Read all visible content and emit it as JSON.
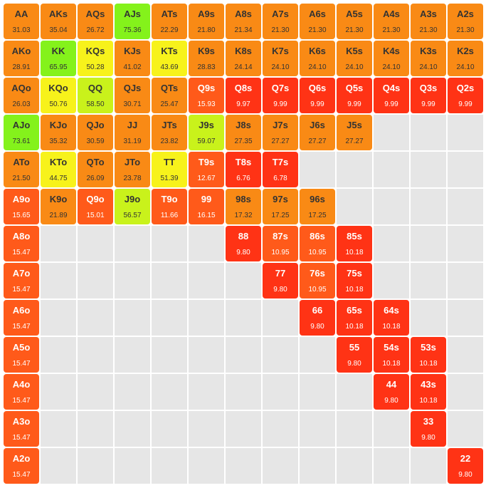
{
  "colors": {
    "empty": "#e6e6e6",
    "orange": "#f98a15",
    "orange_red": "#ff5a1a",
    "red": "#ff3315",
    "yellow": "#f7f21b",
    "lime": "#c9f21b",
    "green": "#84f21b"
  },
  "rows": [
    [
      {
        "hand": "AA",
        "value": "31.03",
        "color": "orange"
      },
      {
        "hand": "AKs",
        "value": "35.04",
        "color": "orange"
      },
      {
        "hand": "AQs",
        "value": "26.72",
        "color": "orange"
      },
      {
        "hand": "AJs",
        "value": "75.36",
        "color": "green"
      },
      {
        "hand": "ATs",
        "value": "22.29",
        "color": "orange"
      },
      {
        "hand": "A9s",
        "value": "21.80",
        "color": "orange"
      },
      {
        "hand": "A8s",
        "value": "21.34",
        "color": "orange"
      },
      {
        "hand": "A7s",
        "value": "21.30",
        "color": "orange"
      },
      {
        "hand": "A6s",
        "value": "21.30",
        "color": "orange"
      },
      {
        "hand": "A5s",
        "value": "21.30",
        "color": "orange"
      },
      {
        "hand": "A4s",
        "value": "21.30",
        "color": "orange"
      },
      {
        "hand": "A3s",
        "value": "21.30",
        "color": "orange"
      },
      {
        "hand": "A2s",
        "value": "21.30",
        "color": "orange"
      }
    ],
    [
      {
        "hand": "AKo",
        "value": "28.91",
        "color": "orange"
      },
      {
        "hand": "KK",
        "value": "65.95",
        "color": "green"
      },
      {
        "hand": "KQs",
        "value": "50.28",
        "color": "yellow"
      },
      {
        "hand": "KJs",
        "value": "41.02",
        "color": "orange"
      },
      {
        "hand": "KTs",
        "value": "43.69",
        "color": "yellow"
      },
      {
        "hand": "K9s",
        "value": "28.83",
        "color": "orange"
      },
      {
        "hand": "K8s",
        "value": "24.14",
        "color": "orange"
      },
      {
        "hand": "K7s",
        "value": "24.10",
        "color": "orange"
      },
      {
        "hand": "K6s",
        "value": "24.10",
        "color": "orange"
      },
      {
        "hand": "K5s",
        "value": "24.10",
        "color": "orange"
      },
      {
        "hand": "K4s",
        "value": "24.10",
        "color": "orange"
      },
      {
        "hand": "K3s",
        "value": "24.10",
        "color": "orange"
      },
      {
        "hand": "K2s",
        "value": "24.10",
        "color": "orange"
      }
    ],
    [
      {
        "hand": "AQo",
        "value": "26.03",
        "color": "orange"
      },
      {
        "hand": "KQo",
        "value": "50.76",
        "color": "yellow"
      },
      {
        "hand": "QQ",
        "value": "58.50",
        "color": "lime"
      },
      {
        "hand": "QJs",
        "value": "30.71",
        "color": "orange"
      },
      {
        "hand": "QTs",
        "value": "25.47",
        "color": "orange"
      },
      {
        "hand": "Q9s",
        "value": "15.93",
        "color": "orange_red"
      },
      {
        "hand": "Q8s",
        "value": "9.97",
        "color": "red"
      },
      {
        "hand": "Q7s",
        "value": "9.99",
        "color": "red"
      },
      {
        "hand": "Q6s",
        "value": "9.99",
        "color": "red"
      },
      {
        "hand": "Q5s",
        "value": "9.99",
        "color": "red"
      },
      {
        "hand": "Q4s",
        "value": "9.99",
        "color": "red"
      },
      {
        "hand": "Q3s",
        "value": "9.99",
        "color": "red"
      },
      {
        "hand": "Q2s",
        "value": "9.99",
        "color": "red"
      }
    ],
    [
      {
        "hand": "AJo",
        "value": "73.61",
        "color": "green"
      },
      {
        "hand": "KJo",
        "value": "35.32",
        "color": "orange"
      },
      {
        "hand": "QJo",
        "value": "30.59",
        "color": "orange"
      },
      {
        "hand": "JJ",
        "value": "31.19",
        "color": "orange"
      },
      {
        "hand": "JTs",
        "value": "23.82",
        "color": "orange"
      },
      {
        "hand": "J9s",
        "value": "59.07",
        "color": "lime"
      },
      {
        "hand": "J8s",
        "value": "27.35",
        "color": "orange"
      },
      {
        "hand": "J7s",
        "value": "27.27",
        "color": "orange"
      },
      {
        "hand": "J6s",
        "value": "27.27",
        "color": "orange"
      },
      {
        "hand": "J5s",
        "value": "27.27",
        "color": "orange"
      },
      null,
      null,
      null
    ],
    [
      {
        "hand": "ATo",
        "value": "21.50",
        "color": "orange"
      },
      {
        "hand": "KTo",
        "value": "44.75",
        "color": "yellow"
      },
      {
        "hand": "QTo",
        "value": "26.09",
        "color": "orange"
      },
      {
        "hand": "JTo",
        "value": "23.78",
        "color": "orange"
      },
      {
        "hand": "TT",
        "value": "51.39",
        "color": "yellow"
      },
      {
        "hand": "T9s",
        "value": "12.67",
        "color": "orange_red"
      },
      {
        "hand": "T8s",
        "value": "6.76",
        "color": "red"
      },
      {
        "hand": "T7s",
        "value": "6.78",
        "color": "red"
      },
      null,
      null,
      null,
      null,
      null
    ],
    [
      {
        "hand": "A9o",
        "value": "15.65",
        "color": "orange_red"
      },
      {
        "hand": "K9o",
        "value": "21.89",
        "color": "orange"
      },
      {
        "hand": "Q9o",
        "value": "15.01",
        "color": "orange_red"
      },
      {
        "hand": "J9o",
        "value": "56.57",
        "color": "lime"
      },
      {
        "hand": "T9o",
        "value": "11.66",
        "color": "orange_red"
      },
      {
        "hand": "99",
        "value": "16.15",
        "color": "orange_red"
      },
      {
        "hand": "98s",
        "value": "17.32",
        "color": "orange"
      },
      {
        "hand": "97s",
        "value": "17.25",
        "color": "orange"
      },
      {
        "hand": "96s",
        "value": "17.25",
        "color": "orange"
      },
      null,
      null,
      null,
      null
    ],
    [
      {
        "hand": "A8o",
        "value": "15.47",
        "color": "orange_red"
      },
      null,
      null,
      null,
      null,
      null,
      {
        "hand": "88",
        "value": "9.80",
        "color": "red"
      },
      {
        "hand": "87s",
        "value": "10.95",
        "color": "orange_red"
      },
      {
        "hand": "86s",
        "value": "10.95",
        "color": "orange_red"
      },
      {
        "hand": "85s",
        "value": "10.18",
        "color": "red"
      },
      null,
      null,
      null
    ],
    [
      {
        "hand": "A7o",
        "value": "15.47",
        "color": "orange_red"
      },
      null,
      null,
      null,
      null,
      null,
      null,
      {
        "hand": "77",
        "value": "9.80",
        "color": "red"
      },
      {
        "hand": "76s",
        "value": "10.95",
        "color": "orange_red"
      },
      {
        "hand": "75s",
        "value": "10.18",
        "color": "red"
      },
      null,
      null,
      null
    ],
    [
      {
        "hand": "A6o",
        "value": "15.47",
        "color": "orange_red"
      },
      null,
      null,
      null,
      null,
      null,
      null,
      null,
      {
        "hand": "66",
        "value": "9.80",
        "color": "red"
      },
      {
        "hand": "65s",
        "value": "10.18",
        "color": "red"
      },
      {
        "hand": "64s",
        "value": "10.18",
        "color": "red"
      },
      null,
      null
    ],
    [
      {
        "hand": "A5o",
        "value": "15.47",
        "color": "orange_red"
      },
      null,
      null,
      null,
      null,
      null,
      null,
      null,
      null,
      {
        "hand": "55",
        "value": "9.80",
        "color": "red"
      },
      {
        "hand": "54s",
        "value": "10.18",
        "color": "red"
      },
      {
        "hand": "53s",
        "value": "10.18",
        "color": "red"
      },
      null
    ],
    [
      {
        "hand": "A4o",
        "value": "15.47",
        "color": "orange_red"
      },
      null,
      null,
      null,
      null,
      null,
      null,
      null,
      null,
      null,
      {
        "hand": "44",
        "value": "9.80",
        "color": "red"
      },
      {
        "hand": "43s",
        "value": "10.18",
        "color": "red"
      },
      null
    ],
    [
      {
        "hand": "A3o",
        "value": "15.47",
        "color": "orange_red"
      },
      null,
      null,
      null,
      null,
      null,
      null,
      null,
      null,
      null,
      null,
      {
        "hand": "33",
        "value": "9.80",
        "color": "red"
      },
      null
    ],
    [
      {
        "hand": "A2o",
        "value": "15.47",
        "color": "orange_red"
      },
      null,
      null,
      null,
      null,
      null,
      null,
      null,
      null,
      null,
      null,
      null,
      {
        "hand": "22",
        "value": "9.80",
        "color": "red"
      }
    ]
  ]
}
